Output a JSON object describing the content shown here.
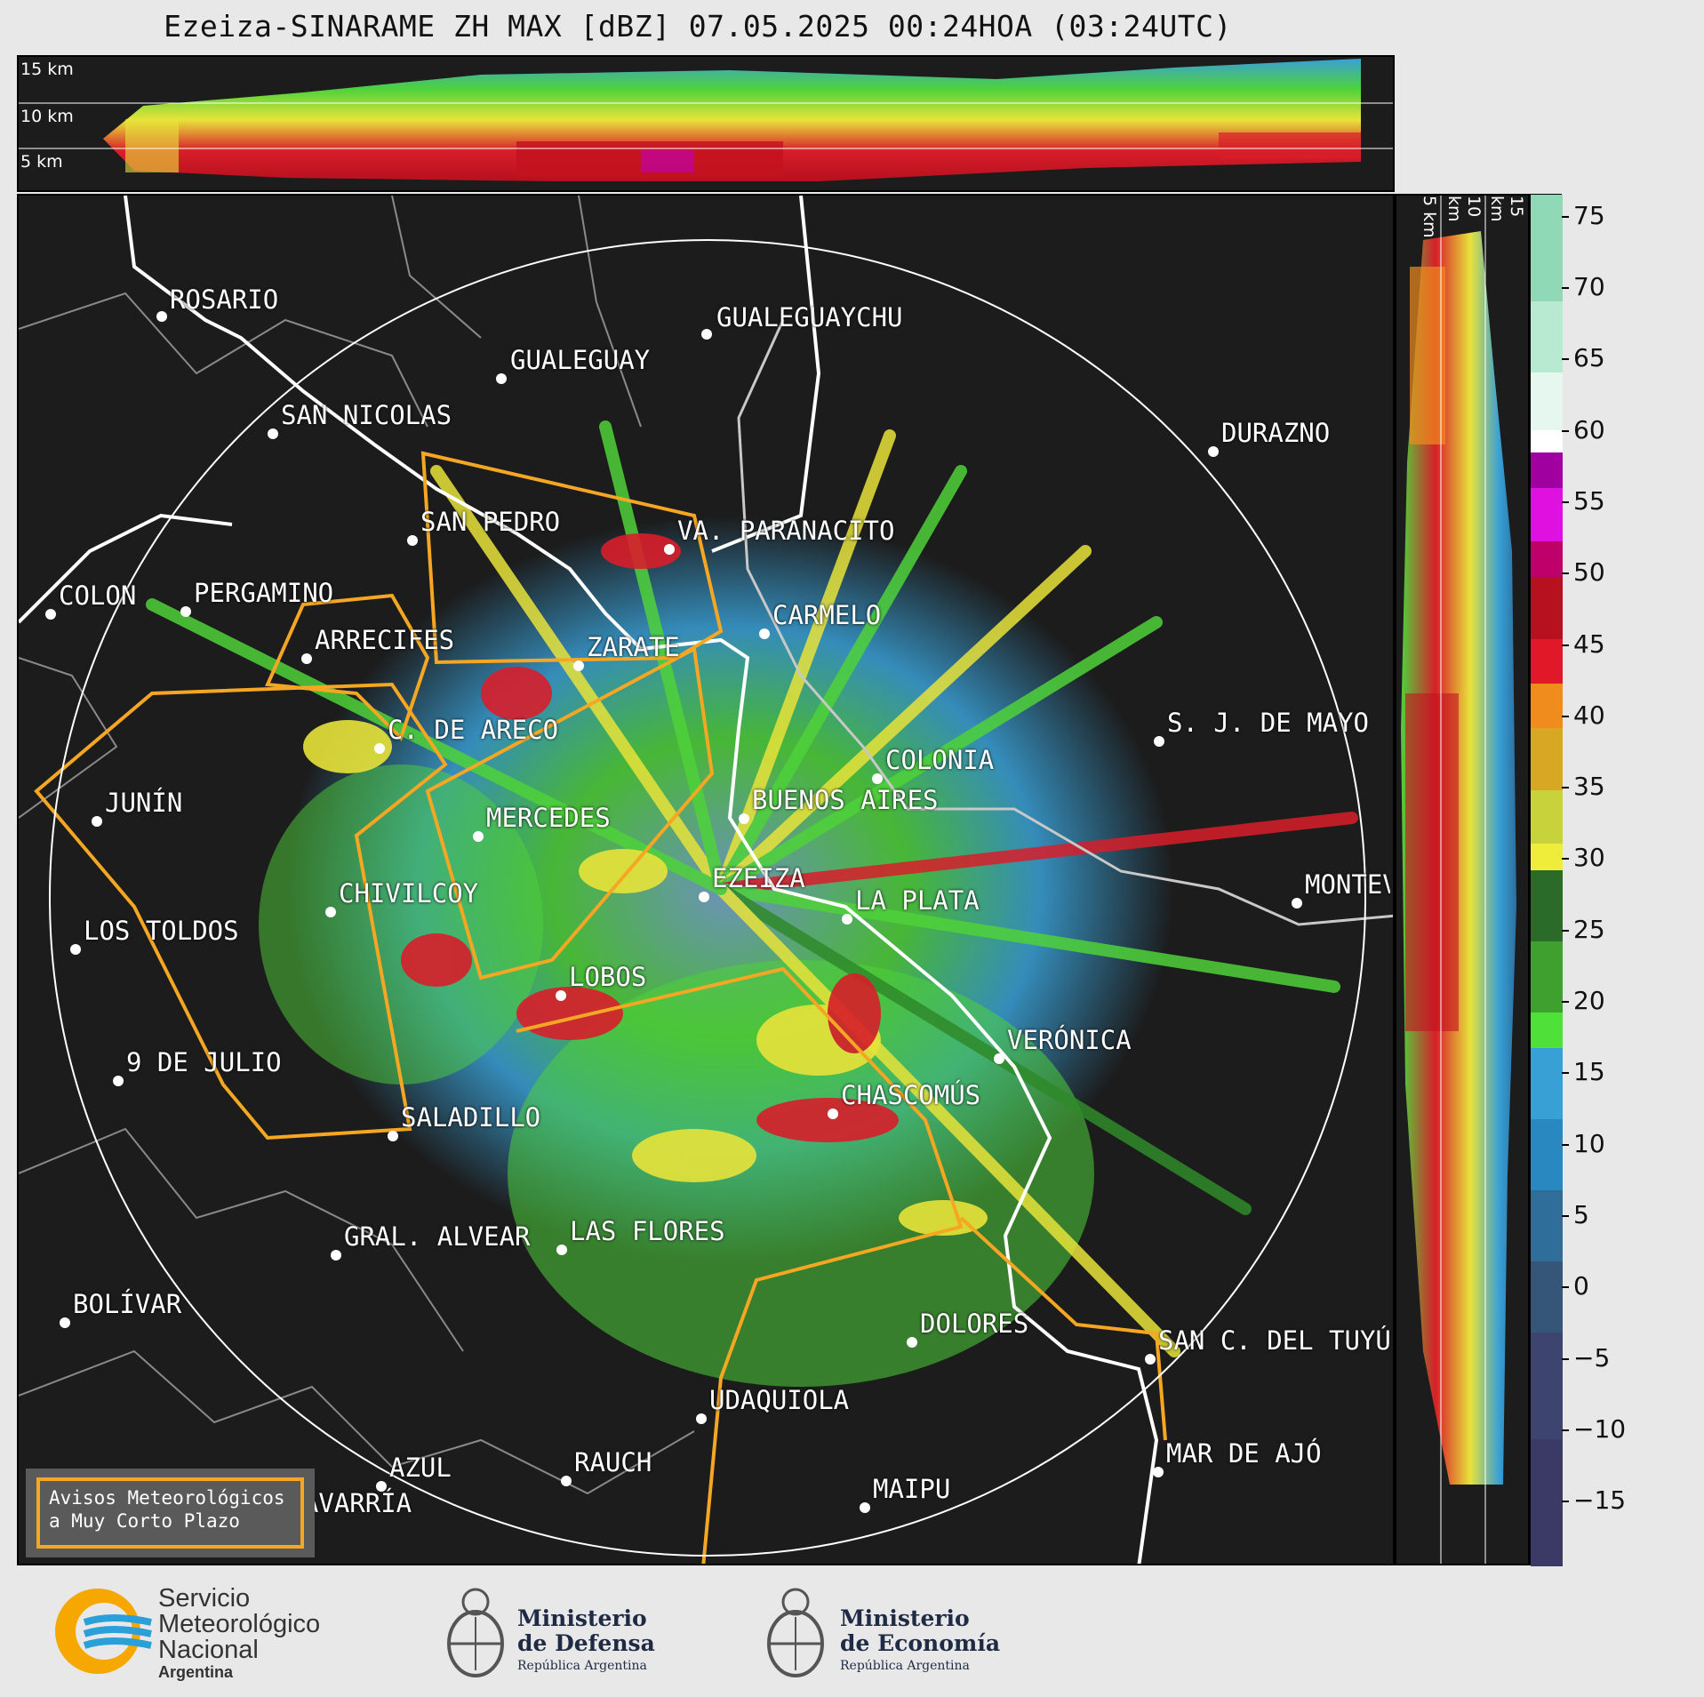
{
  "title": "Ezeiza-SINARAME ZH MAX [dBZ] 07.05.2025 00:24HOA (03:24UTC)",
  "top_panel": {
    "alt_labels": [
      "15 km",
      "10 km",
      "5 km"
    ]
  },
  "right_panel": {
    "alt_labels": [
      "5 km",
      "10 km",
      "15 km"
    ]
  },
  "colorbar": {
    "labels": [
      "75",
      "70",
      "65",
      "60",
      "55",
      "50",
      "45",
      "40",
      "35",
      "30",
      "25",
      "20",
      "15",
      "10",
      "5",
      "0",
      "−5",
      "−10",
      "−15"
    ]
  },
  "cities": {
    "rosario": "ROSARIO",
    "gualeguaychu": "GUALEGUAYCHU",
    "gualeguay": "GUALEGUAY",
    "san_nicolas": "SAN NICOLAS",
    "durazno": "DURAZNO",
    "san_pedro": "SAN PEDRO",
    "villa_paranacito": "VA. PARANACITO",
    "colon": "COLON",
    "pergamino": "PERGAMINO",
    "carmelo": "CARMELO",
    "arrecifes": "ARRECIFES",
    "zarate": "ZARATE",
    "sj_mayo": "S. J. DE MAYO",
    "c_areco": "C. DE ARECO",
    "colonia": "COLONIA",
    "junin": "JUNÍN",
    "mercedes": "MERCEDES",
    "buenos_aires": "BUENOS AIRES",
    "ezeiza": "EZEIZA",
    "montevideo": "MONTEVIDEO",
    "chivilcoy": "CHIVILCOY",
    "la_plata": "LA PLATA",
    "los_toldos": "LOS TOLDOS",
    "lobos": "LOBOS",
    "veronica": "VERÓNICA",
    "nueve_julio": "9 DE JULIO",
    "chascomus": "CHASCOMÚS",
    "saladillo": "SALADILLO",
    "gral_alvear": "GRAL. ALVEAR",
    "las_flores": "LAS FLORES",
    "bolivar": "BOLÍVAR",
    "dolores": "DOLORES",
    "san_c_tuyu": "SAN C. DEL TUYÚ",
    "udaquiola": "UDAQUIOLA",
    "mar_de_ajo": "MAR DE AJÓ",
    "azul": "AZUL",
    "rauch": "RAUCH",
    "olavarria": "OLAVARRÍA",
    "maipu": "MAIPU"
  },
  "legend": {
    "line1": "Avisos Meteorológicos",
    "line2": "a Muy Corto Plazo"
  },
  "logos": {
    "smn_line1": "Servicio",
    "smn_line2": "Meteorológico",
    "smn_line3": "Nacional",
    "smn_line4": "Argentina",
    "defensa_line1": "Ministerio",
    "defensa_line2": "de Defensa",
    "defensa_line3": "República Argentina",
    "economia_line1": "Ministerio",
    "economia_line2": "de Economía",
    "economia_line3": "República Argentina"
  },
  "colors": {
    "background": "#1c1c1c",
    "warning_outline": "#f5a623",
    "coast": "#ffffff",
    "borders": "#8a8a8a"
  }
}
